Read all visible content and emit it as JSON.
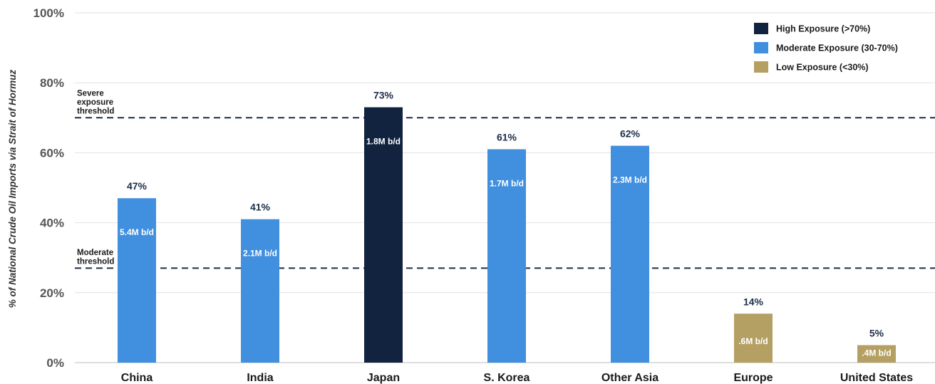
{
  "chart_data": {
    "type": "bar",
    "ylabel": "% of National Crude Oil Imports via Strait of Hormuz",
    "ylim": [
      0,
      100
    ],
    "yticks": [
      "0%",
      "20%",
      "40%",
      "60%",
      "80%",
      "100%"
    ],
    "ytick_values": [
      0,
      20,
      40,
      60,
      80,
      100
    ],
    "grid": true,
    "legend_position": "top-right",
    "categories": [
      "China",
      "India",
      "Japan",
      "S. Korea",
      "Other Asia",
      "Europe",
      "United States"
    ],
    "values": [
      47,
      41,
      73,
      61,
      62,
      14,
      5
    ],
    "value_labels": [
      "47%",
      "41%",
      "73%",
      "61%",
      "62%",
      "14%",
      "5%"
    ],
    "volume_labels": [
      "5.4M b/d",
      "2.1M b/d",
      "1.8M b/d",
      "1.7M b/d",
      "2.3M b/d",
      ".6M b/d",
      ".4M b/d"
    ],
    "exposure": [
      "moderate",
      "moderate",
      "high",
      "moderate",
      "moderate",
      "low",
      "low"
    ],
    "legend": [
      {
        "key": "high",
        "label": "High Exposure (>70%)",
        "color": "#12233f"
      },
      {
        "key": "moderate",
        "label": "Moderate Exposure (30-70%)",
        "color": "#418fdf"
      },
      {
        "key": "low",
        "label": "Low Exposure (<30%)",
        "color": "#b5a064"
      }
    ],
    "thresholds": [
      {
        "value": 70,
        "lines": [
          "Severe",
          "exposure",
          "threshold"
        ]
      },
      {
        "value": 27,
        "lines": [
          "Moderate",
          "threshold"
        ]
      }
    ]
  }
}
